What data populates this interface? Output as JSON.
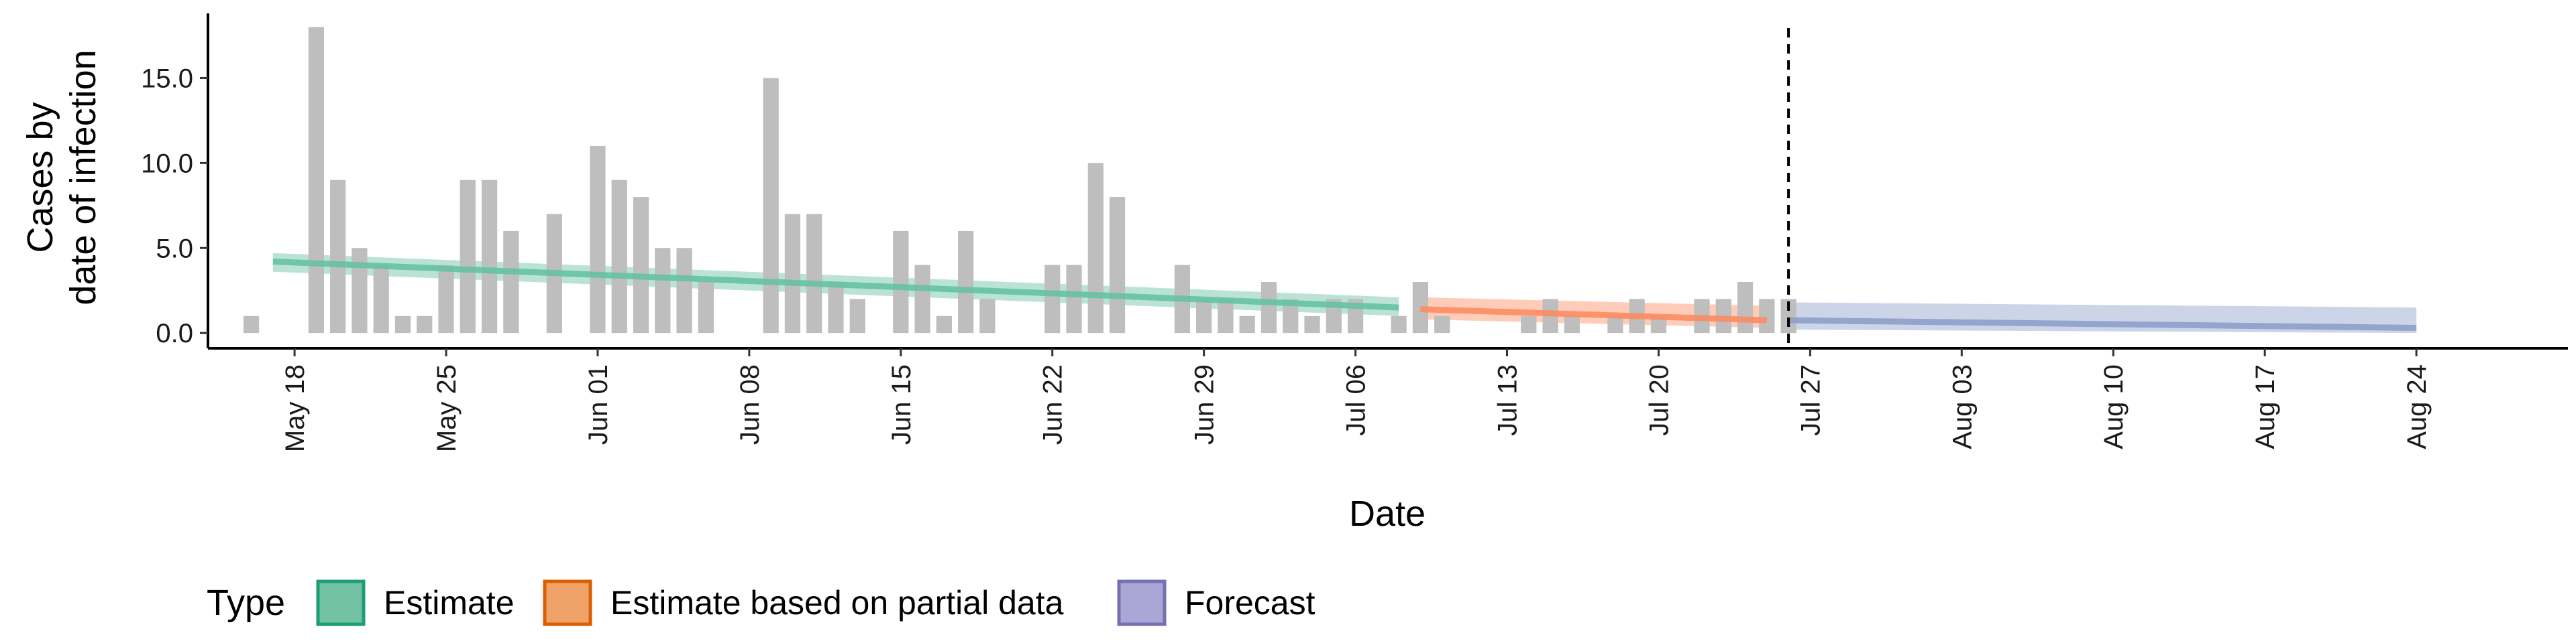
{
  "chart_data": {
    "type": "bar",
    "xlabel": "Date",
    "ylabel_lines": [
      "Cases by",
      "date of infection"
    ],
    "ylim": [
      -0.9,
      18.8
    ],
    "yticks": [
      0,
      5,
      10,
      15
    ],
    "ytick_labels": [
      "0.0",
      "5.0",
      "10.0",
      "15.0"
    ],
    "x_start": "2020-05-14",
    "x_end": "2020-08-31",
    "xticks": [
      "2020-05-18",
      "2020-05-25",
      "2020-06-01",
      "2020-06-08",
      "2020-06-15",
      "2020-06-22",
      "2020-06-29",
      "2020-07-06",
      "2020-07-13",
      "2020-07-20",
      "2020-07-27",
      "2020-08-03",
      "2020-08-10",
      "2020-08-17",
      "2020-08-24"
    ],
    "xtick_labels": [
      "May 18",
      "May 25",
      "Jun 01",
      "Jun 08",
      "Jun 15",
      "Jun 22",
      "Jun 29",
      "Jul 06",
      "Jul 13",
      "Jul 20",
      "Jul 27",
      "Aug 03",
      "Aug 10",
      "Aug 17",
      "Aug 24"
    ],
    "vline_date": "2020-07-26",
    "bar_color": "#bebebe",
    "bars": {
      "start_date": "2020-05-16",
      "values": [
        1,
        0,
        0,
        18,
        9,
        5,
        4,
        1,
        1,
        4,
        9,
        9,
        6,
        0,
        7,
        0,
        11,
        9,
        8,
        5,
        5,
        3,
        0,
        0,
        15,
        7,
        7,
        3,
        2,
        0,
        6,
        4,
        1,
        6,
        2,
        0,
        0,
        4,
        4,
        10,
        8,
        0,
        0,
        4,
        2,
        2,
        1,
        3,
        2,
        1,
        2,
        2,
        0,
        1,
        3,
        1,
        0,
        0,
        0,
        1,
        2,
        1,
        0,
        1,
        2,
        1,
        0,
        2,
        2,
        3,
        2,
        2
      ]
    },
    "series": [
      {
        "name": "Estimate",
        "color": "#1b9e77",
        "fill": "#66c2a5",
        "start_date": "2020-05-17",
        "end_date": "2020-07-08",
        "y_start": 4.2,
        "y_end": 1.5,
        "band_start": [
          3.6,
          4.7
        ],
        "band_end": [
          1.0,
          2.1
        ]
      },
      {
        "name": "Estimate based on partial data",
        "color": "#d95f02",
        "fill": "#fc8d62",
        "start_date": "2020-07-09",
        "end_date": "2020-07-25",
        "y_start": 1.4,
        "y_end": 0.75,
        "band_start": [
          0.8,
          2.1
        ],
        "band_end": [
          0.3,
          1.6
        ]
      },
      {
        "name": "Forecast",
        "color": "#7570b3",
        "fill": "#8da0cb",
        "start_date": "2020-07-26",
        "end_date": "2020-08-24",
        "y_start": 0.75,
        "y_end": 0.3,
        "band_start": [
          0.2,
          1.8
        ],
        "band_end": [
          0.0,
          1.5
        ]
      }
    ],
    "legend": {
      "title": "Type",
      "position": "bottom-left",
      "items": [
        {
          "label": "Estimate",
          "fill": "#74c2a4",
          "stroke": "#1b9e77"
        },
        {
          "label": "Estimate based on partial data",
          "fill": "#f0a368",
          "stroke": "#d95f02"
        },
        {
          "label": "Forecast",
          "fill": "#aaa6d6",
          "stroke": "#7570b3"
        }
      ]
    }
  }
}
